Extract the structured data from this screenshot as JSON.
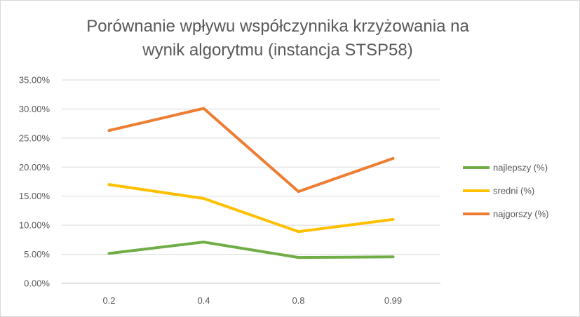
{
  "chart_data": {
    "type": "line",
    "title": "Porównanie wpływu współczynnika krzyżowania na\nwynik algorytmu (instancja STSP58)",
    "xlabel": "",
    "ylabel": "",
    "categories": [
      "0.2",
      "0.4",
      "0.8",
      "0.99"
    ],
    "ylim": [
      0,
      0.35
    ],
    "yticks": [
      "0.00%",
      "5.00%",
      "10.00%",
      "15.00%",
      "20.00%",
      "25.00%",
      "30.00%",
      "35.00%"
    ],
    "grid": true,
    "legend_position": "right",
    "series": [
      {
        "name": "najlepszy (%)",
        "color": "#70ad47",
        "values": [
          0.0515,
          0.071,
          0.0445,
          0.0455
        ]
      },
      {
        "name": "sredni (%)",
        "color": "#ffc000",
        "values": [
          0.17,
          0.146,
          0.089,
          0.11
        ]
      },
      {
        "name": "najgorszy (%)",
        "color": "#ed7d31",
        "values": [
          0.263,
          0.301,
          0.158,
          0.215
        ]
      }
    ]
  }
}
